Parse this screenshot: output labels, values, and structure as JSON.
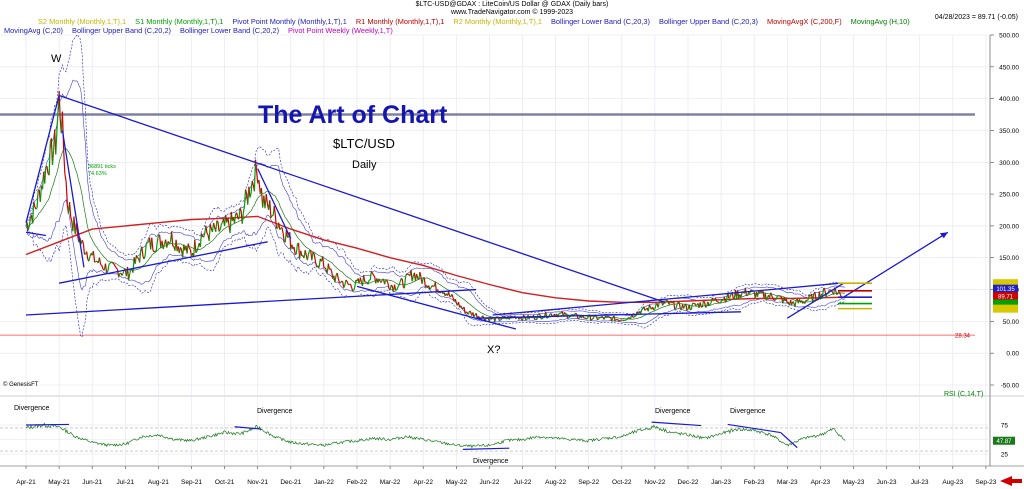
{
  "header": {
    "title": "$LTC-USD@GDAX : LiteCoin/US Dollar @ GDAX  (Daily bars)",
    "copyright": "www.TradeNavigator.com © 1999-2023",
    "date_value": "04/28/2023 = 89.71 (-0.05)"
  },
  "legend_row1": [
    {
      "text": "S2 Monthly (Monthly,1,T),1",
      "color": "#c8b400"
    },
    {
      "text": "S1 Monthly (Monthly,1,T),1",
      "color": "#00a000"
    },
    {
      "text": "Pivot Point Monthly (Monthly,1,T),1",
      "color": "#2020c0"
    },
    {
      "text": "R1 Monthly (Monthly,1,T),1",
      "color": "#c00000"
    },
    {
      "text": "R2 Monthly (Monthly,1,T),1",
      "color": "#c8b400"
    },
    {
      "text": "Bollinger Lower Band (C,20,3)",
      "color": "#2020c0"
    },
    {
      "text": "Bollinger Upper Band (C,20,3)",
      "color": "#2020c0"
    },
    {
      "text": "MovingAvgX (C,200,F)",
      "color": "#c00000"
    },
    {
      "text": "MovingAvg (H,10)",
      "color": "#008000"
    }
  ],
  "legend_row2": [
    {
      "text": "MovingAvg (C,20)",
      "color": "#2020c0"
    },
    {
      "text": "Bollinger Upper Band (C,20,2)",
      "color": "#2020c0"
    },
    {
      "text": "Bollinger Lower Band (C,20,2)",
      "color": "#2020c0"
    },
    {
      "text": "Pivot Point Weekly (Weekly,1,T)",
      "color": "#c000c0"
    }
  ],
  "annotations": {
    "title": "The Art of Chart",
    "ticker": "$LTC/USD",
    "period": "Daily",
    "w_label": "W",
    "x_label": "X?",
    "ticks_label": "36891 ticks",
    "pct_label": "74.63%",
    "genesis": "© GenesisFT",
    "line_value": "28.34",
    "divergences": [
      "Divergence",
      "Divergence",
      "Divergence",
      "Divergence",
      "Divergence"
    ]
  },
  "current_values": {
    "upper_band": "101.35",
    "close": "89.71",
    "rsi": "47.87"
  },
  "chart_data": [
    {
      "type": "line",
      "title": "",
      "series_name": "$LTC-USD daily close",
      "y_ticks": [
        -50,
        0,
        50,
        100,
        150,
        200,
        250,
        300,
        350,
        400,
        450,
        500
      ],
      "y_tick_labels": [
        "-50.00",
        "0.00",
        "50.00",
        "100.00",
        "150.00",
        "200.00",
        "250.00",
        "300.00",
        "350.00",
        "400.00",
        "450.00",
        "500.00"
      ],
      "ylim": [
        -60,
        510
      ],
      "x_ticks": [
        "Apr-21",
        "May-21",
        "Jun-21",
        "Jul-21",
        "Aug-21",
        "Sep-21",
        "Oct-21",
        "Nov-21",
        "Dec-21",
        "Jan-22",
        "Feb-22",
        "Mar-22",
        "Apr-22",
        "May-22",
        "Jun-22",
        "Jul-22",
        "Aug-22",
        "Sep-22",
        "Oct-22",
        "Nov-22",
        "Dec-22",
        "Jan-23",
        "Feb-23",
        "Mar-23",
        "Apr-23",
        "May-23",
        "Jun-23",
        "Jul-23",
        "Aug-23",
        "Sep-23"
      ],
      "price": [
        [
          0,
          200
        ],
        [
          0.3,
          230
        ],
        [
          0.6,
          290
        ],
        [
          0.9,
          330
        ],
        [
          1.0,
          400
        ],
        [
          1.1,
          350
        ],
        [
          1.25,
          240
        ],
        [
          1.45,
          200
        ],
        [
          1.7,
          170
        ],
        [
          2.0,
          150
        ],
        [
          2.4,
          135
        ],
        [
          2.8,
          130
        ],
        [
          3.1,
          125
        ],
        [
          3.4,
          150
        ],
        [
          3.7,
          170
        ],
        [
          4.0,
          175
        ],
        [
          4.4,
          182
        ],
        [
          4.7,
          165
        ],
        [
          5.0,
          158
        ],
        [
          5.3,
          185
        ],
        [
          5.6,
          190
        ],
        [
          5.9,
          195
        ],
        [
          6.2,
          205
        ],
        [
          6.5,
          215
        ],
        [
          6.8,
          265
        ],
        [
          7.0,
          290
        ],
        [
          7.15,
          240
        ],
        [
          7.4,
          225
        ],
        [
          7.7,
          200
        ],
        [
          8.0,
          175
        ],
        [
          8.3,
          160
        ],
        [
          8.6,
          150
        ],
        [
          9.0,
          140
        ],
        [
          9.3,
          120
        ],
        [
          9.6,
          110
        ],
        [
          9.9,
          105
        ],
        [
          10.2,
          115
        ],
        [
          10.5,
          120
        ],
        [
          10.8,
          115
        ],
        [
          11.1,
          105
        ],
        [
          11.4,
          110
        ],
        [
          11.7,
          125
        ],
        [
          12.0,
          115
        ],
        [
          12.3,
          105
        ],
        [
          12.6,
          100
        ],
        [
          12.9,
          85
        ],
        [
          13.1,
          75
        ],
        [
          13.3,
          65
        ],
        [
          13.6,
          60
        ],
        [
          13.9,
          55
        ],
        [
          14.2,
          53
        ],
        [
          14.5,
          55
        ],
        [
          14.8,
          58
        ],
        [
          15.1,
          55
        ],
        [
          15.4,
          57
        ],
        [
          15.7,
          60
        ],
        [
          16.0,
          62
        ],
        [
          16.3,
          60
        ],
        [
          16.6,
          58
        ],
        [
          17.0,
          56
        ],
        [
          17.3,
          55
        ],
        [
          17.6,
          55
        ],
        [
          17.9,
          53
        ],
        [
          18.2,
          56
        ],
        [
          18.5,
          65
        ],
        [
          18.8,
          70
        ],
        [
          19.1,
          76
        ],
        [
          19.4,
          78
        ],
        [
          19.7,
          74
        ],
        [
          20.0,
          72
        ],
        [
          20.3,
          76
        ],
        [
          20.6,
          79
        ],
        [
          20.9,
          84
        ],
        [
          21.2,
          88
        ],
        [
          21.5,
          93
        ],
        [
          21.8,
          96
        ],
        [
          22.1,
          92
        ],
        [
          22.4,
          90
        ],
        [
          22.7,
          88
        ],
        [
          23.0,
          80
        ],
        [
          23.2,
          78
        ],
        [
          23.5,
          82
        ],
        [
          23.8,
          88
        ],
        [
          24.1,
          95
        ],
        [
          24.4,
          100
        ],
        [
          24.6,
          92
        ],
        [
          24.75,
          89.71
        ]
      ],
      "sma200": [
        [
          0,
          155
        ],
        [
          1,
          175
        ],
        [
          2,
          195
        ],
        [
          3,
          200
        ],
        [
          4,
          205
        ],
        [
          5,
          210
        ],
        [
          6,
          212
        ],
        [
          7,
          215
        ],
        [
          8,
          195
        ],
        [
          9,
          178
        ],
        [
          10,
          165
        ],
        [
          11,
          150
        ],
        [
          12,
          138
        ],
        [
          13,
          122
        ],
        [
          14,
          108
        ],
        [
          15,
          95
        ],
        [
          16,
          87
        ],
        [
          17,
          82
        ],
        [
          18,
          80
        ],
        [
          19,
          80
        ],
        [
          20,
          82
        ],
        [
          21,
          84
        ],
        [
          22,
          86
        ],
        [
          23,
          86
        ],
        [
          24,
          87
        ],
        [
          24.75,
          88
        ]
      ],
      "resistance_line": 375,
      "support_line": 28.34,
      "trendlines": [
        {
          "from": [
            0,
            205
          ],
          "to": [
            1,
            405
          ]
        },
        {
          "from": [
            1,
            405
          ],
          "to": [
            19.3,
            80
          ]
        },
        {
          "from": [
            0,
            190
          ],
          "to": [
            0.6,
            185
          ]
        },
        {
          "from": [
            1.1,
            350
          ],
          "to": [
            1.75,
            135
          ]
        },
        {
          "from": [
            1,
            110
          ],
          "to": [
            7.3,
            175
          ]
        },
        {
          "from": [
            0,
            60
          ],
          "to": [
            13.6,
            100
          ]
        },
        {
          "from": [
            7,
            290
          ],
          "to": [
            8,
            180
          ]
        },
        {
          "from": [
            10,
            105
          ],
          "to": [
            14.8,
            38
          ]
        },
        {
          "from": [
            13.6,
            55
          ],
          "to": [
            21.6,
            65
          ]
        },
        {
          "from": [
            14.1,
            60
          ],
          "to": [
            24.6,
            110
          ]
        },
        {
          "from": [
            23.0,
            55
          ],
          "to": [
            24.7,
            110
          ]
        },
        {
          "from": [
            24.7,
            88
          ],
          "to": [
            27.85,
            190
          ]
        }
      ],
      "pivot_levels": [
        {
          "name": "R2",
          "value": 110,
          "color": "#c8b400"
        },
        {
          "name": "R1",
          "value": 98,
          "color": "#c00000"
        },
        {
          "name": "Pivot",
          "value": 88,
          "color": "#2020c0"
        },
        {
          "name": "S1",
          "value": 78,
          "color": "#00a000"
        },
        {
          "name": "S2",
          "value": 70,
          "color": "#c8b400"
        }
      ]
    },
    {
      "type": "line",
      "title": "",
      "series_name": "RSI (C,14,T)",
      "y_ticks": [
        25,
        50,
        75
      ],
      "y_tick_labels": [
        "25",
        "50",
        "75"
      ],
      "ylim": [
        10,
        90
      ],
      "reference_lines": [
        30,
        70
      ],
      "rsi": [
        [
          0,
          70
        ],
        [
          0.5,
          75
        ],
        [
          1,
          72
        ],
        [
          1.5,
          55
        ],
        [
          2,
          45
        ],
        [
          2.5,
          40
        ],
        [
          3,
          42
        ],
        [
          3.5,
          55
        ],
        [
          4,
          58
        ],
        [
          4.5,
          50
        ],
        [
          5,
          48
        ],
        [
          5.5,
          55
        ],
        [
          6,
          62
        ],
        [
          6.5,
          60
        ],
        [
          7,
          72
        ],
        [
          7.5,
          55
        ],
        [
          8,
          45
        ],
        [
          8.5,
          42
        ],
        [
          9,
          40
        ],
        [
          9.5,
          45
        ],
        [
          10,
          48
        ],
        [
          10.5,
          52
        ],
        [
          11,
          50
        ],
        [
          11.5,
          55
        ],
        [
          12,
          50
        ],
        [
          12.5,
          45
        ],
        [
          13,
          40
        ],
        [
          13.5,
          38
        ],
        [
          14,
          40
        ],
        [
          14.5,
          48
        ],
        [
          15,
          50
        ],
        [
          15.5,
          55
        ],
        [
          16,
          52
        ],
        [
          16.5,
          50
        ],
        [
          17,
          48
        ],
        [
          17.5,
          52
        ],
        [
          18,
          55
        ],
        [
          18.5,
          65
        ],
        [
          19,
          72
        ],
        [
          19.5,
          62
        ],
        [
          20,
          58
        ],
        [
          20.5,
          52
        ],
        [
          21,
          60
        ],
        [
          21.5,
          68
        ],
        [
          22,
          66
        ],
        [
          22.5,
          58
        ],
        [
          23,
          40
        ],
        [
          23.5,
          52
        ],
        [
          24,
          58
        ],
        [
          24.4,
          68
        ],
        [
          24.75,
          47.87
        ]
      ],
      "current": 47.87
    }
  ]
}
